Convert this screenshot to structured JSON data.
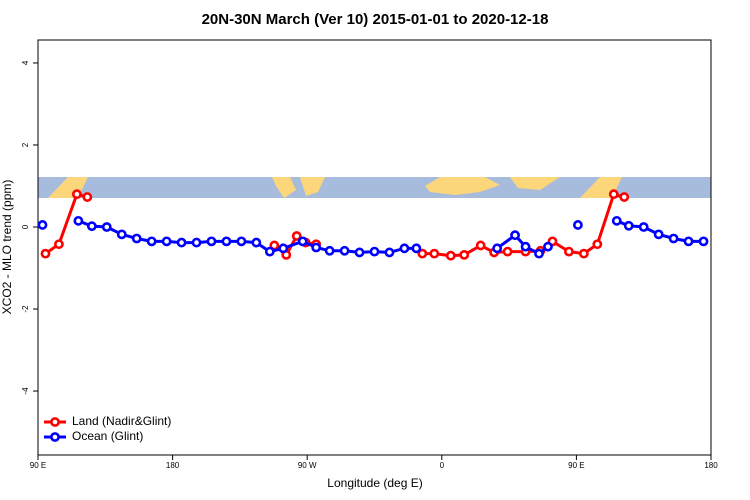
{
  "chart_data": {
    "type": "line",
    "title": "20N-30N March (Ver 10)   2015-01-01 to 2020-12-18",
    "x_label": "Longitude (deg E)",
    "y_label": "XCO2 - MLO trend (ppm)",
    "xlim": [
      90,
      540
    ],
    "ylim": [
      -5.56,
      4.56
    ],
    "xticks": [
      {
        "value": 90,
        "label": "90 E"
      },
      180,
      {
        "value": 270,
        "label": "90 W"
      },
      {
        "value": 360,
        "label": "0"
      },
      {
        "value": 450,
        "label": "90 E"
      },
      {
        "value": 540,
        "label": "180"
      }
    ],
    "yticks": [
      -4,
      -2,
      0,
      2,
      4
    ],
    "legend": "bottom-left",
    "series": [
      {
        "name": "Land (Nadir&Glint)",
        "color": "#ff0000",
        "x": [
          95,
          104,
          116,
          123,
          null,
          248,
          256,
          263,
          269,
          276,
          null,
          347,
          355,
          366,
          375,
          386,
          395,
          404,
          416,
          426,
          434,
          445,
          455,
          464,
          475,
          482
        ],
        "values": [
          -0.65,
          -0.42,
          0.8,
          0.73,
          null,
          -0.45,
          -0.68,
          -0.22,
          -0.38,
          -0.42,
          null,
          -0.65,
          -0.65,
          -0.7,
          -0.68,
          -0.45,
          -0.62,
          -0.6,
          -0.6,
          -0.58,
          -0.35,
          -0.6,
          -0.65,
          -0.42,
          0.8,
          0.73
        ]
      },
      {
        "name": "Ocean (Glint)",
        "color": "#0000ff",
        "x": [
          93,
          null,
          117,
          126,
          136,
          146,
          156,
          166,
          176,
          186,
          196,
          206,
          216,
          226,
          236,
          245,
          254,
          267,
          276,
          285,
          295,
          305,
          315,
          325,
          335,
          343,
          null,
          397,
          409,
          416,
          425,
          431,
          null,
          451,
          null,
          477,
          485,
          495,
          505,
          515,
          525,
          535
        ],
        "values": [
          0.05,
          null,
          0.15,
          0.02,
          0.0,
          -0.18,
          -0.28,
          -0.35,
          -0.35,
          -0.38,
          -0.38,
          -0.35,
          -0.35,
          -0.35,
          -0.38,
          -0.6,
          -0.52,
          -0.35,
          -0.5,
          -0.58,
          -0.58,
          -0.62,
          -0.6,
          -0.62,
          -0.52,
          -0.52,
          null,
          -0.52,
          -0.2,
          -0.48,
          -0.65,
          -0.48,
          null,
          0.05,
          null,
          0.15,
          0.03,
          0.0,
          -0.18,
          -0.28,
          -0.35,
          -0.35
        ]
      }
    ]
  }
}
